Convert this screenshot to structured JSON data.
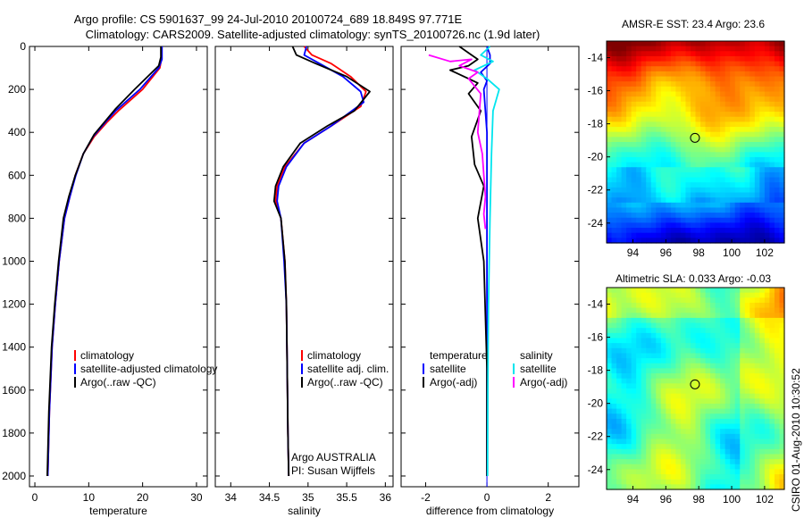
{
  "header": {
    "title_line1": "Argo profile: CS 5901637_99 24-Jul-2010 20100724_689 18.849S 97.771E",
    "title_line2": "Climatology: CARS2009. Satellite-adjusted climatology: synTS_20100726.nc (1.9d later)"
  },
  "colors": {
    "climatology": "#ff0000",
    "satellite": "#0000ff",
    "argo": "#000000",
    "sat_salinity": "#00e5ee",
    "argo_salinity": "#ff00ff"
  },
  "chart_data": [
    {
      "id": "temperature",
      "type": "line",
      "xlabel": "temperature",
      "xlim": [
        -1,
        32
      ],
      "xticks": [
        0,
        10,
        20,
        30
      ],
      "ylim": [
        0,
        2050
      ],
      "yticks": [
        0,
        200,
        400,
        600,
        800,
        1000,
        1200,
        1400,
        1600,
        1800,
        2000
      ],
      "legend": [
        "climatology",
        "satellite-adjusted climatology",
        "Argo(..raw -QC)"
      ],
      "series": [
        {
          "name": "climatology",
          "color": "#ff0000",
          "x": [
            23.5,
            23.5,
            23.2,
            20.0,
            15.5,
            13.5,
            11.0,
            9.0,
            7.5,
            6.5,
            5.5,
            4.5,
            3.8,
            3.2,
            2.7,
            2.4
          ],
          "y": [
            0,
            60,
            100,
            200,
            300,
            350,
            420,
            500,
            600,
            700,
            800,
            1000,
            1200,
            1400,
            1700,
            2000
          ]
        },
        {
          "name": "satellite",
          "color": "#0000ff",
          "x": [
            23.6,
            23.6,
            23.0,
            19.5,
            15.0,
            13.2,
            10.8,
            9.0,
            7.6,
            6.5,
            5.5,
            4.5,
            3.8,
            3.2,
            2.7,
            2.4
          ],
          "y": [
            0,
            60,
            100,
            200,
            300,
            350,
            420,
            500,
            600,
            700,
            800,
            1000,
            1200,
            1400,
            1700,
            2000
          ]
        },
        {
          "name": "argo",
          "color": "#000000",
          "x": [
            23.4,
            23.4,
            23.0,
            18.5,
            15.0,
            13.0,
            11.0,
            9.0,
            7.5,
            6.3,
            5.3,
            4.4,
            3.7,
            3.1,
            2.6,
            2.3
          ],
          "y": [
            0,
            50,
            90,
            200,
            290,
            350,
            410,
            500,
            600,
            700,
            800,
            1000,
            1200,
            1400,
            1700,
            2000
          ]
        }
      ]
    },
    {
      "id": "salinity",
      "type": "line",
      "xlabel": "salinity",
      "xlim": [
        33.8,
        36.1
      ],
      "xticks": [
        34,
        34.5,
        35,
        35.5,
        36
      ],
      "ylim": [
        0,
        2050
      ],
      "legend": [
        "climatology",
        "satellite adj. clim.",
        "Argo(..raw -QC)"
      ],
      "annotations": [
        "Argo AUSTRALIA",
        "PI: Susan Wijffels"
      ],
      "series": [
        {
          "name": "climatology",
          "color": "#ff0000",
          "x": [
            34.95,
            35.05,
            35.3,
            35.55,
            35.75,
            35.68,
            35.3,
            34.95,
            34.7,
            34.6,
            34.58,
            34.65,
            34.7,
            34.72,
            34.73,
            34.74,
            34.75
          ],
          "y": [
            0,
            40,
            80,
            140,
            210,
            280,
            370,
            450,
            560,
            650,
            720,
            800,
            1000,
            1200,
            1500,
            1800,
            2000
          ]
        },
        {
          "name": "satellite",
          "color": "#0000ff",
          "x": [
            34.98,
            34.95,
            35.15,
            35.45,
            35.68,
            35.72,
            35.3,
            34.95,
            34.72,
            34.62,
            34.6,
            34.65,
            34.69,
            34.72,
            34.73,
            34.74,
            34.75
          ],
          "y": [
            0,
            40,
            80,
            140,
            210,
            260,
            370,
            450,
            560,
            650,
            720,
            800,
            1000,
            1200,
            1500,
            1800,
            2000
          ]
        },
        {
          "name": "argo",
          "color": "#000000",
          "x": [
            34.8,
            34.85,
            35.1,
            35.5,
            35.8,
            35.6,
            35.25,
            34.9,
            34.68,
            34.58,
            34.56,
            34.65,
            34.7,
            34.72,
            34.73,
            34.74,
            34.75
          ],
          "y": [
            0,
            40,
            80,
            140,
            210,
            300,
            370,
            450,
            560,
            650,
            720,
            800,
            1000,
            1200,
            1500,
            1800,
            2000
          ]
        }
      ]
    },
    {
      "id": "difference",
      "type": "line",
      "xlabel": "difference from climatology",
      "xlim": [
        -2.8,
        3.0
      ],
      "xticks": [
        -2,
        0,
        2
      ],
      "ylim": [
        0,
        2050
      ],
      "legend": [
        "temperature",
        "satellite",
        "Argo(-adj)",
        "salinity",
        "satellite",
        "Argo(-adj)"
      ],
      "series": [
        {
          "name": "temperature satellite",
          "color": "#0000ff",
          "x": [
            0.0,
            0.1,
            0.1,
            -0.2,
            0.0,
            -0.1,
            0.0,
            0.0
          ],
          "y": [
            0,
            40,
            80,
            120,
            160,
            200,
            400,
            2000
          ]
        },
        {
          "name": "temperature Argo",
          "color": "#000000",
          "x": [
            -0.9,
            -0.5,
            -0.3,
            -0.6,
            -1.2,
            -0.3,
            -0.6,
            -0.2,
            -0.5,
            -0.4,
            -0.1,
            -0.3,
            -0.1,
            0.0,
            0.0
          ],
          "y": [
            0,
            40,
            60,
            90,
            110,
            170,
            220,
            300,
            420,
            550,
            650,
            800,
            1000,
            1500,
            2000
          ]
        },
        {
          "name": "salinity satellite",
          "color": "#00e5ee",
          "x": [
            0.1,
            -0.2,
            0.2,
            -0.4,
            0.0,
            0.4,
            0.2,
            0.15,
            0.1,
            0.05,
            0.03,
            0.02
          ],
          "y": [
            0,
            40,
            70,
            110,
            150,
            200,
            300,
            500,
            800,
            1200,
            1600,
            2000
          ]
        },
        {
          "name": "salinity Argo",
          "color": "#ff00ff",
          "x": [
            -1.9,
            -1.2,
            -0.5,
            -0.9,
            -0.3,
            -0.6,
            -0.2,
            -0.3,
            -0.15,
            -0.1,
            -0.05,
            -0.1,
            -0.05
          ],
          "y": [
            40,
            70,
            60,
            90,
            120,
            150,
            220,
            400,
            500,
            600,
            700,
            780,
            850
          ]
        }
      ]
    }
  ],
  "maps": [
    {
      "id": "sst",
      "title": "AMSR-E SST: 23.4 Argo: 23.6",
      "xticks": [
        94,
        96,
        98,
        100,
        102
      ],
      "yticks": [
        -14,
        -16,
        -18,
        -20,
        -22,
        -24
      ],
      "lon_range": [
        92.4,
        103.2
      ],
      "lat_range": [
        -25.2,
        -13.0
      ],
      "marker": {
        "lon": 97.77,
        "lat": -18.85
      }
    },
    {
      "id": "sla",
      "title": "Altimetric SLA: 0.033 Argo: -0.03",
      "xticks": [
        94,
        96,
        98,
        100,
        102
      ],
      "yticks": [
        -14,
        -16,
        -18,
        -20,
        -22,
        -24
      ],
      "lon_range": [
        92.4,
        103.2
      ],
      "lat_range": [
        -25.2,
        -13.0
      ],
      "marker": {
        "lon": 97.77,
        "lat": -18.85
      }
    }
  ],
  "footer": {
    "side_label": "CSIRO 01-Aug-2010 10:30:52"
  }
}
